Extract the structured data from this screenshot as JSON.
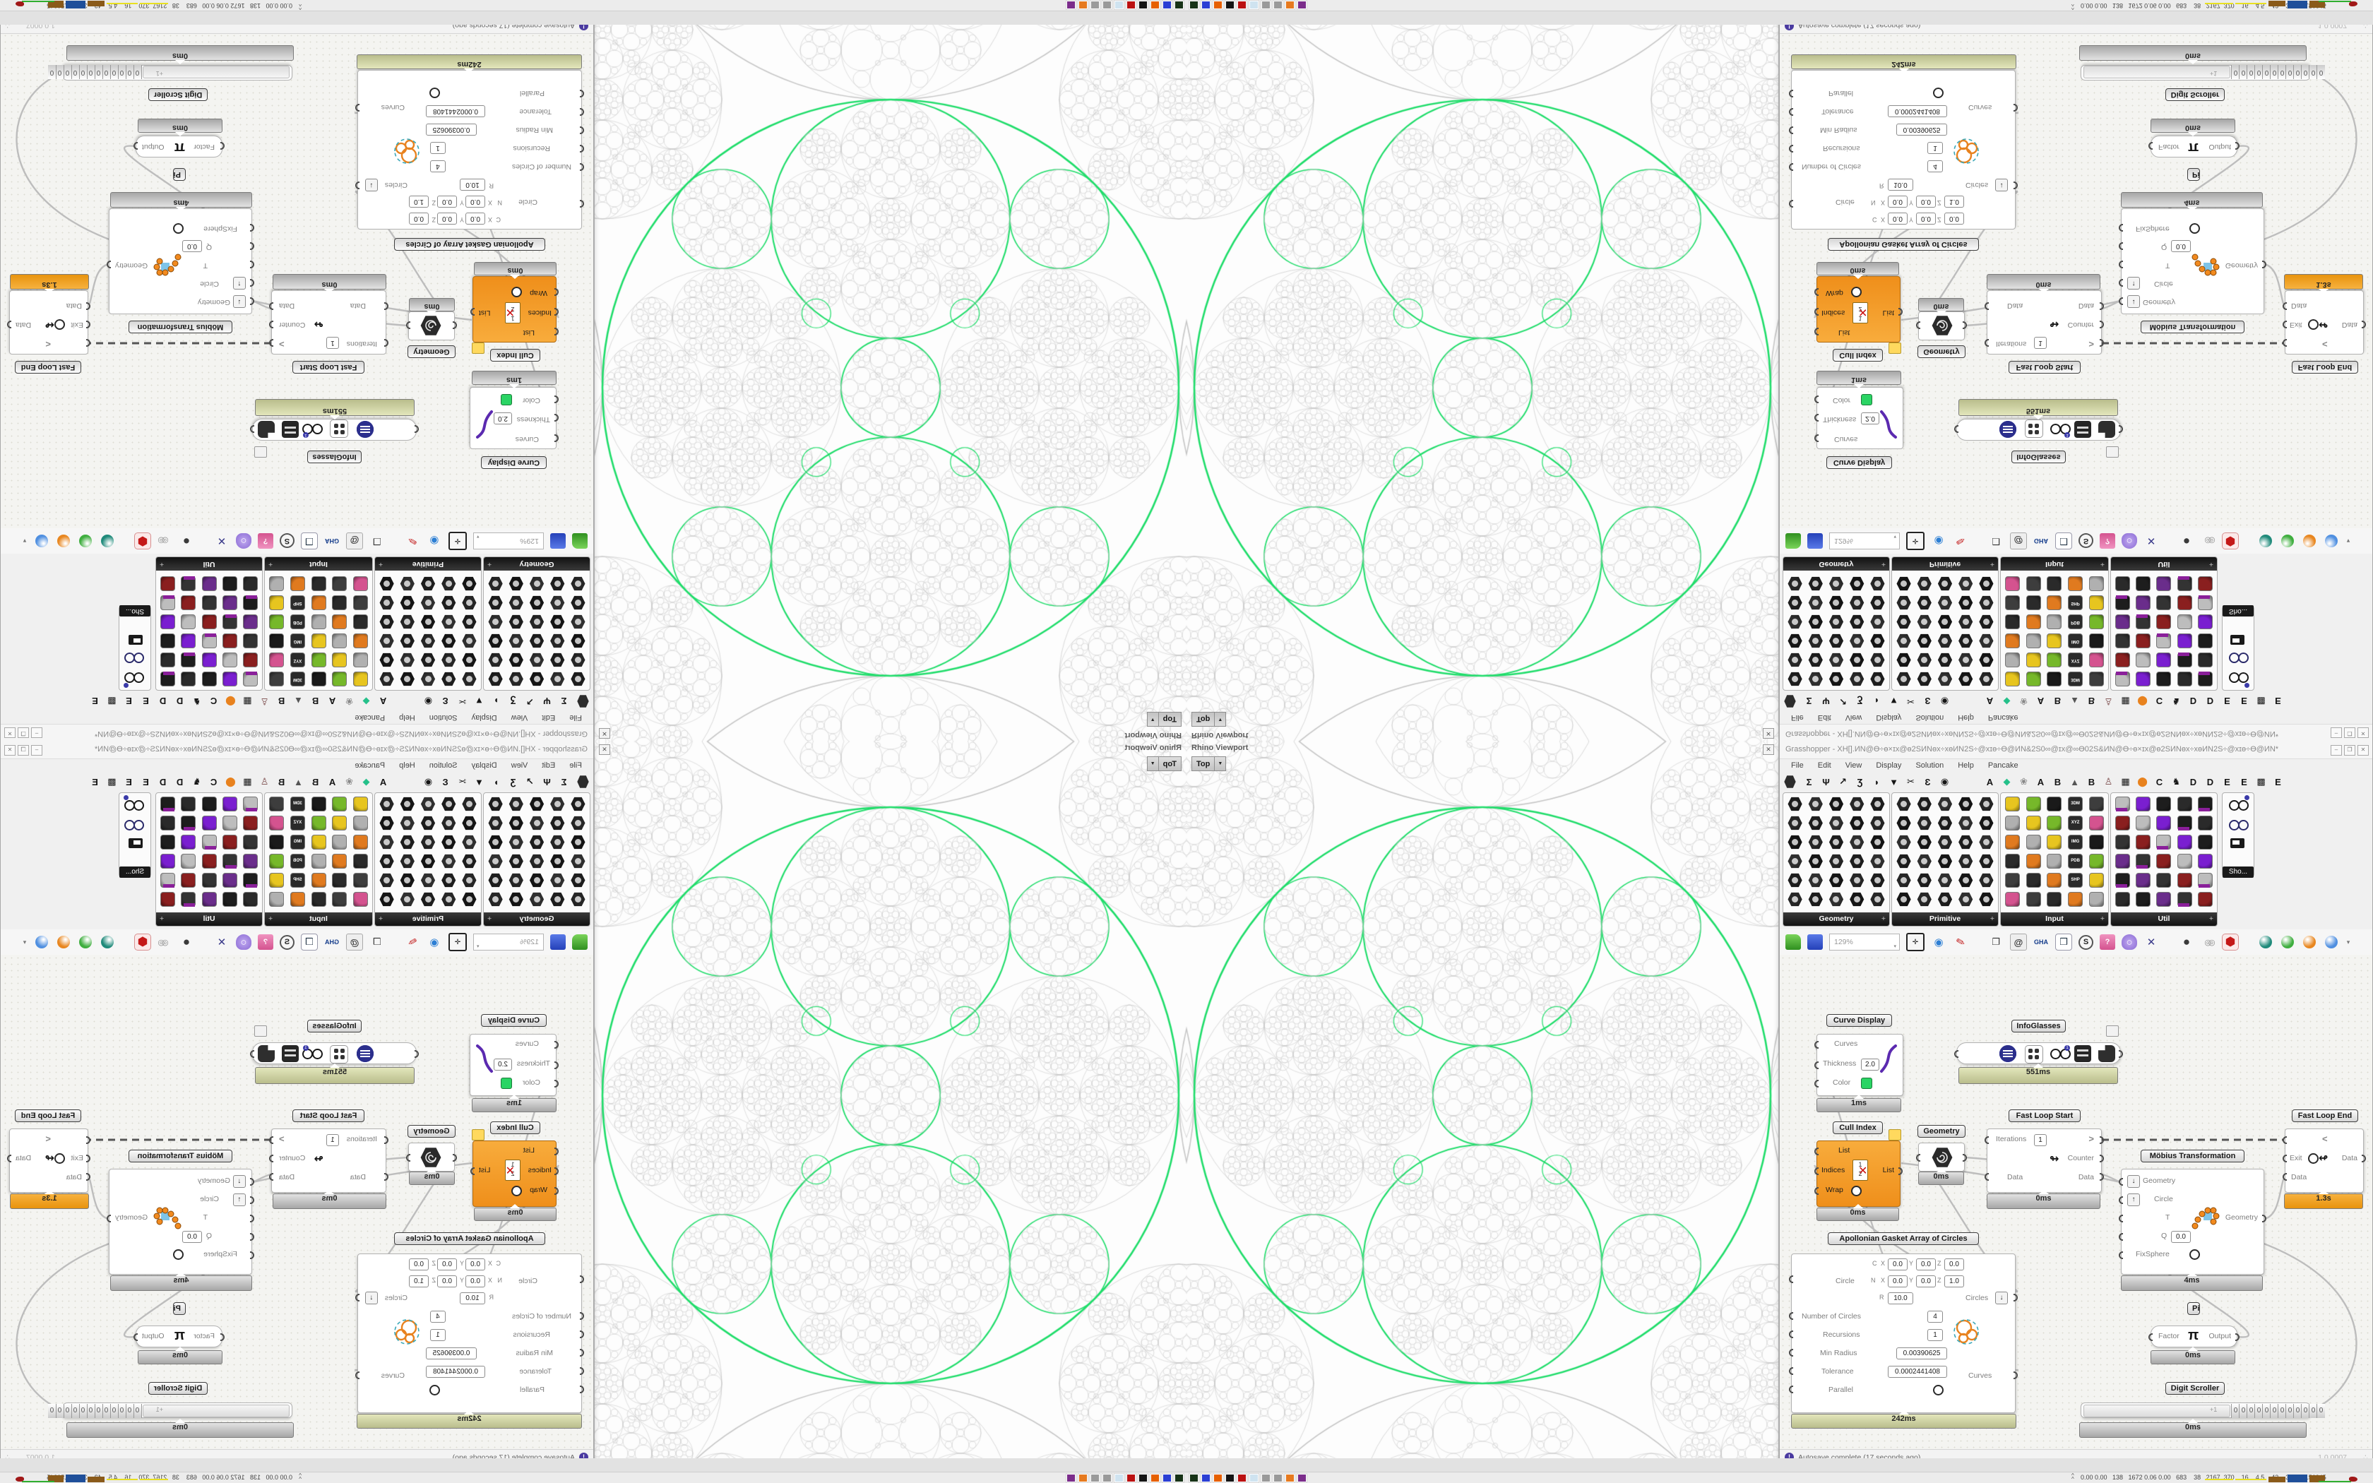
{
  "app": {
    "gh_window_title": "Grasshopper - XH[].ИN@Ө÷ɵ×ɪx@ɵ2SИNɵx÷xɵИN2S÷@xɪɵ÷Ө@ИN&2S0∞@ɪx@∞Ө02S&ИN@Ө÷ɵ×ɪx@ɵ2SИNɵx÷xɵИN2S÷@xɪɵ÷Ө@ИN*",
    "btn_min": "–",
    "btn_max": "❐",
    "btn_close": "✕"
  },
  "viewport": {
    "title": "Rhino Viewport",
    "close": "✕",
    "view_tab": "Top",
    "caret": "▼"
  },
  "menu": [
    "File",
    "Edit",
    "View",
    "Display",
    "Solution",
    "Help",
    "Pancake"
  ],
  "tabs": [
    "Σ",
    "Ψ",
    "↗",
    "Ʒ",
    "◗",
    "▼",
    "✂",
    "Ɛ",
    "◉",
    "A",
    "◆",
    "❀",
    "A",
    "B",
    "▲",
    "B",
    "♙",
    "▦",
    "⬤",
    "C",
    "♞",
    "D",
    "D",
    "E",
    "E",
    "▩",
    "E"
  ],
  "panels": [
    {
      "name": "Geometry"
    },
    {
      "name": "Primitive"
    },
    {
      "name": "Input"
    },
    {
      "name": "Util"
    }
  ],
  "panel_more": "+",
  "chip_labels": [
    "3DM",
    "XYZ",
    "IMG",
    "PDB",
    "SHP"
  ],
  "mini_panel": {
    "label": "Sho..."
  },
  "toolbar": {
    "zoom": "129%",
    "gha": "GHA",
    "loupe": "S"
  },
  "statusbar": {
    "icon": "!",
    "message": "Autosave complete (17 seconds ago)",
    "version": "1.0.0007",
    "grip": "∴"
  },
  "taskbar": {
    "chevron": "^",
    "stats": "0.00 0.00   138   1672 0.06 0.00   683    38   2167  370    16    4.5    43    38   50156345"
  },
  "nodes": {
    "curve_display": {
      "label": "Curve Display",
      "curves": "Curves",
      "thickness": "Thickness",
      "thickness_value": "2.0",
      "color": "Color",
      "time": "1ms"
    },
    "infoglasses": {
      "label": "InfoGlasses",
      "time": "551ms"
    },
    "cull_index": {
      "label": "Cull Index",
      "list_in": "List",
      "indices": "Indices",
      "wrap": "Wrap",
      "list_out": "List",
      "time": "0ms"
    },
    "geometry_param": {
      "label": "Geometry",
      "time": "0ms"
    },
    "fast_loop_start": {
      "label": "Fast Loop Start",
      "iterations": "Iterations",
      "iterations_value": "1",
      "loop_out": ">",
      "counter": "Counter",
      "counter_icon": "↬",
      "data_in": "Data",
      "data_out": "Data",
      "time": "0ms"
    },
    "fast_loop_end": {
      "label": "Fast Loop End",
      "loop_in": "<",
      "exit": "Exit",
      "exit_icon": "↫",
      "data_out": "Data",
      "data_in": "Data",
      "time": "1.3s"
    },
    "mobius": {
      "label": "Möbius Transformation",
      "geometry_in": "Geometry",
      "circle": "Circle",
      "t": "T",
      "q": "Q",
      "q_value": "0.0",
      "fixsphere": "FixSphere",
      "geometry_out": "Geometry",
      "down": "↓",
      "up": "↑",
      "time": "4ms"
    },
    "pi": {
      "label": "Pi",
      "factor": "Factor",
      "symbol": "π",
      "output": "Output",
      "time": "0ms"
    },
    "apollonian": {
      "label": "Apollonian Gasket Array of Circles",
      "c": "C",
      "circle": "Circle",
      "n": "N",
      "x": "X",
      "y": "Y",
      "z": "Z",
      "r": "R",
      "c_x": "0.0",
      "c_y": "0.0",
      "c_z": "0.0",
      "n_x": "0.0",
      "n_y": "0.0",
      "n_z": "1.0",
      "r_value": "10.0",
      "number_label": "Number of Circles",
      "number_value": "4",
      "recursions_label": "Recursions",
      "recursions_value": "1",
      "min_radius_label": "Min Radius",
      "min_radius_value": "0.00390625",
      "tolerance_label": "Tolerance",
      "tolerance_value": "0.0002441408",
      "parallel_label": "Parallel",
      "circles_out": "Circles",
      "down": "↓",
      "curves_out": "Curves",
      "time": "242ms"
    },
    "digit_scroller": {
      "label": "Digit Scroller",
      "increment": "+1",
      "digits": [
        "0",
        "0",
        "0",
        "0",
        "0",
        "0",
        "0",
        "0",
        "0",
        "0",
        "0",
        "0"
      ],
      "time": "0ms"
    }
  },
  "fractal": {
    "green": "#1fdd6a",
    "gray": "#c6c6c6",
    "background": "#fdfdfd"
  },
  "colors": {
    "selected_orange": "#f59b2d",
    "profiler_khaki": "#cdd0a0",
    "accent_green": "#2ad464",
    "wire_gray": "#bdbdbd",
    "wire_dashed": "#555555"
  }
}
